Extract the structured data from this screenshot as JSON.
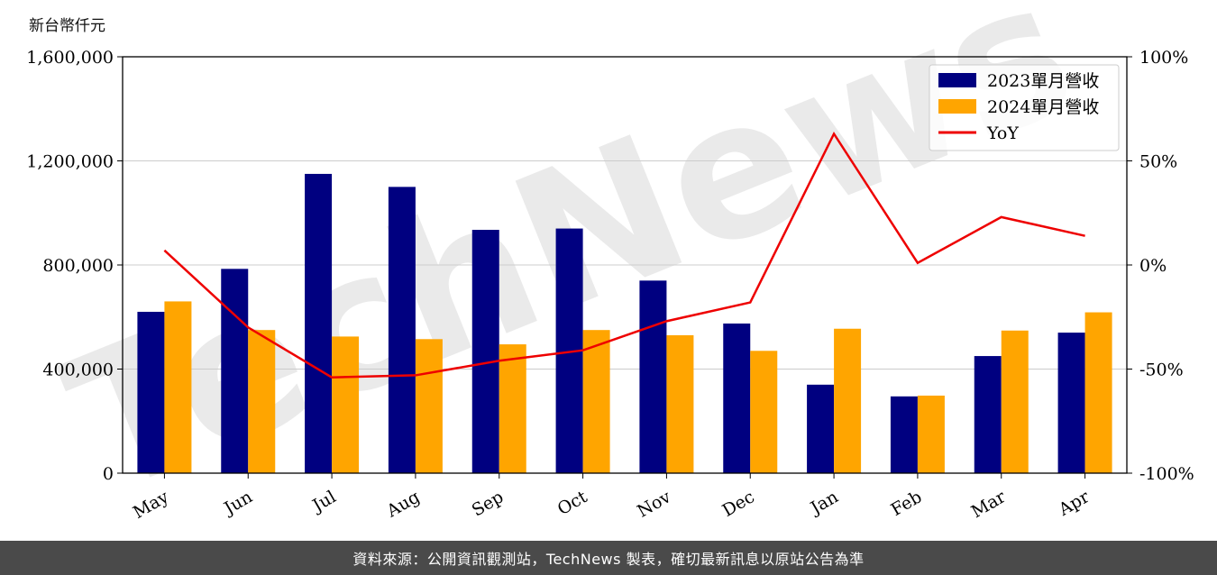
{
  "unit_label": "新台幣仟元",
  "footer_text": "資料來源：公開資訊觀測站，TechNews 製表，確切最新訊息以原站公告為準",
  "watermark": "TechNews",
  "chart_data": {
    "type": "bar",
    "categories": [
      "May",
      "Jun",
      "Jul",
      "Aug",
      "Sep",
      "Oct",
      "Nov",
      "Dec",
      "Jan",
      "Feb",
      "Mar",
      "Apr"
    ],
    "series": [
      {
        "name": "2023單月營收",
        "values": [
          620000,
          785000,
          1150000,
          1100000,
          935000,
          940000,
          740000,
          575000,
          340000,
          295000,
          450000,
          540000
        ],
        "color": "#000080"
      },
      {
        "name": "2024單月營收",
        "values": [
          660000,
          550000,
          525000,
          515000,
          495000,
          550000,
          530000,
          470000,
          555000,
          298000,
          548000,
          618000
        ],
        "color": "#ffa500"
      }
    ],
    "line_series": {
      "name": "YoY",
      "values": [
        7,
        -30,
        -54,
        -53,
        -46,
        -41,
        -27,
        -18,
        63,
        1,
        23,
        14
      ],
      "color": "#ee0000"
    },
    "y_left": {
      "ticks": [
        0,
        400000,
        800000,
        1200000,
        1600000
      ],
      "tick_labels": [
        "0",
        "400,000",
        "800,000",
        "1,200,000",
        "1,600,000"
      ],
      "ylim": [
        0,
        1600000
      ]
    },
    "y_right": {
      "ticks": [
        -100,
        -50,
        0,
        50,
        100
      ],
      "tick_labels": [
        "-100%",
        "-50%",
        "0%",
        "50%",
        "100%"
      ],
      "ylim": [
        -100,
        100
      ]
    },
    "grid": true,
    "legend_position": "top-right"
  }
}
